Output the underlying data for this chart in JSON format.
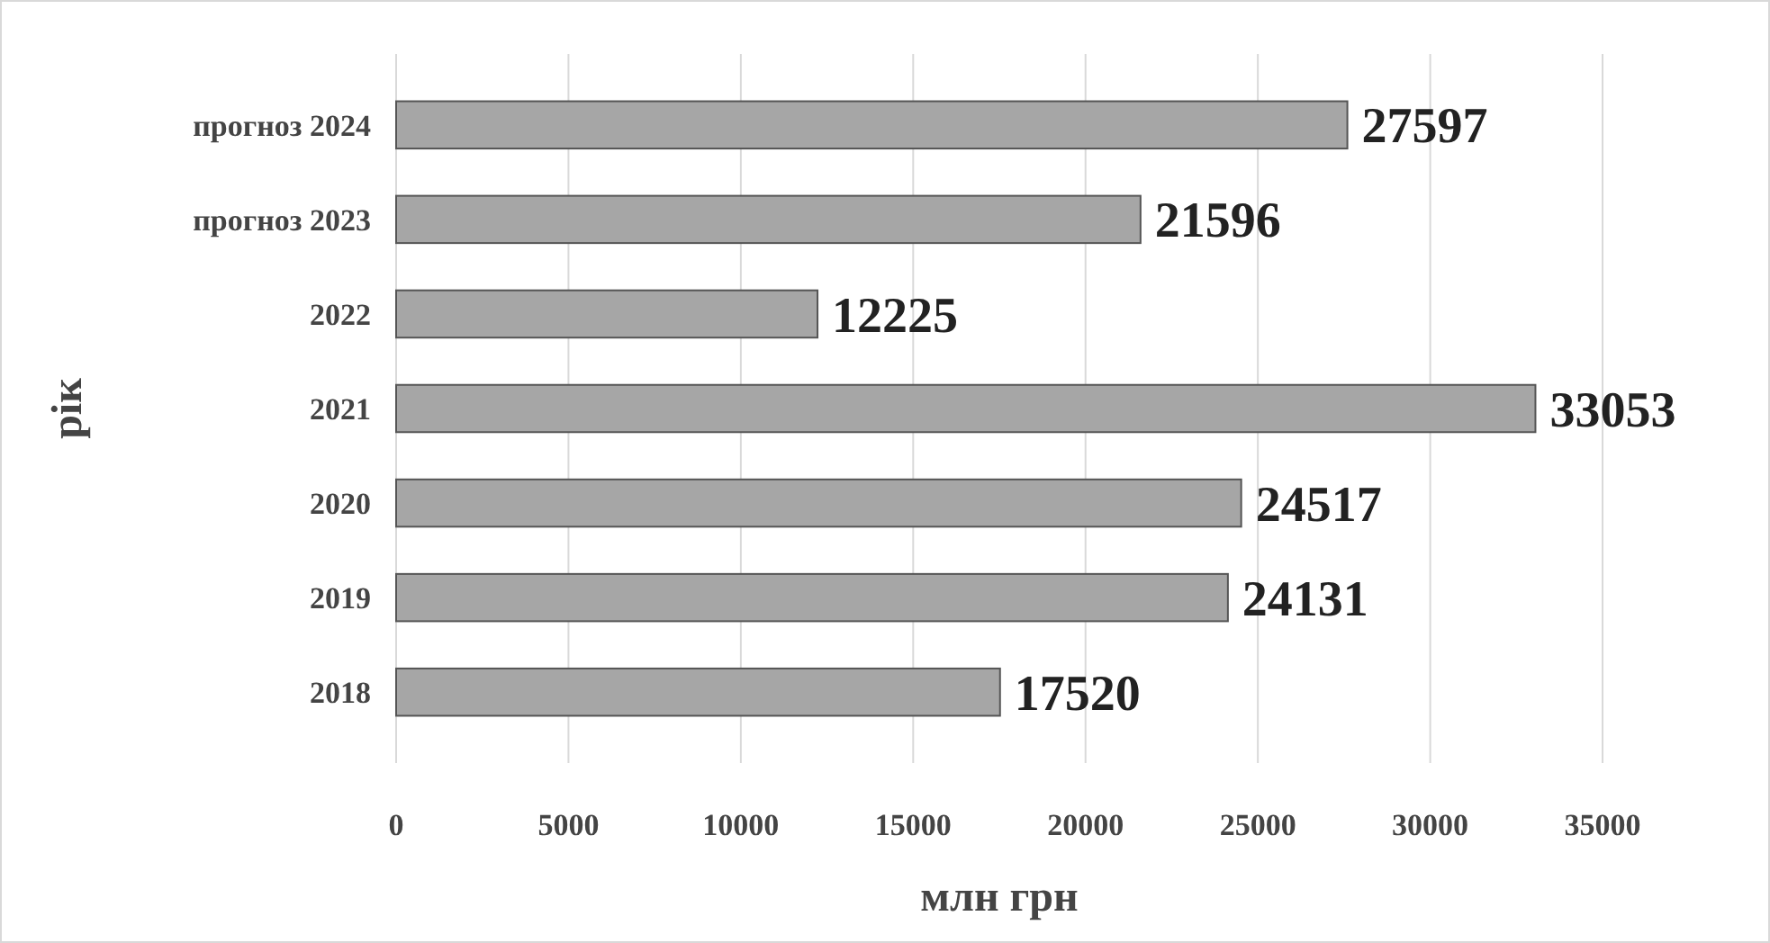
{
  "chart_data": {
    "type": "bar",
    "orientation": "horizontal",
    "xlabel": "млн грн",
    "ylabel": "рік",
    "categories": [
      "прогноз 2024",
      "прогноз 2023",
      "2022",
      "2021",
      "2020",
      "2019",
      "2018"
    ],
    "values": [
      27597,
      21596,
      12225,
      33053,
      24517,
      24131,
      17520
    ],
    "color": "#a6a6a6",
    "xlim": [
      0,
      35000
    ],
    "xticks": [
      0,
      5000,
      10000,
      15000,
      20000,
      25000,
      30000,
      35000
    ],
    "grid": "x",
    "data_labels": true
  }
}
